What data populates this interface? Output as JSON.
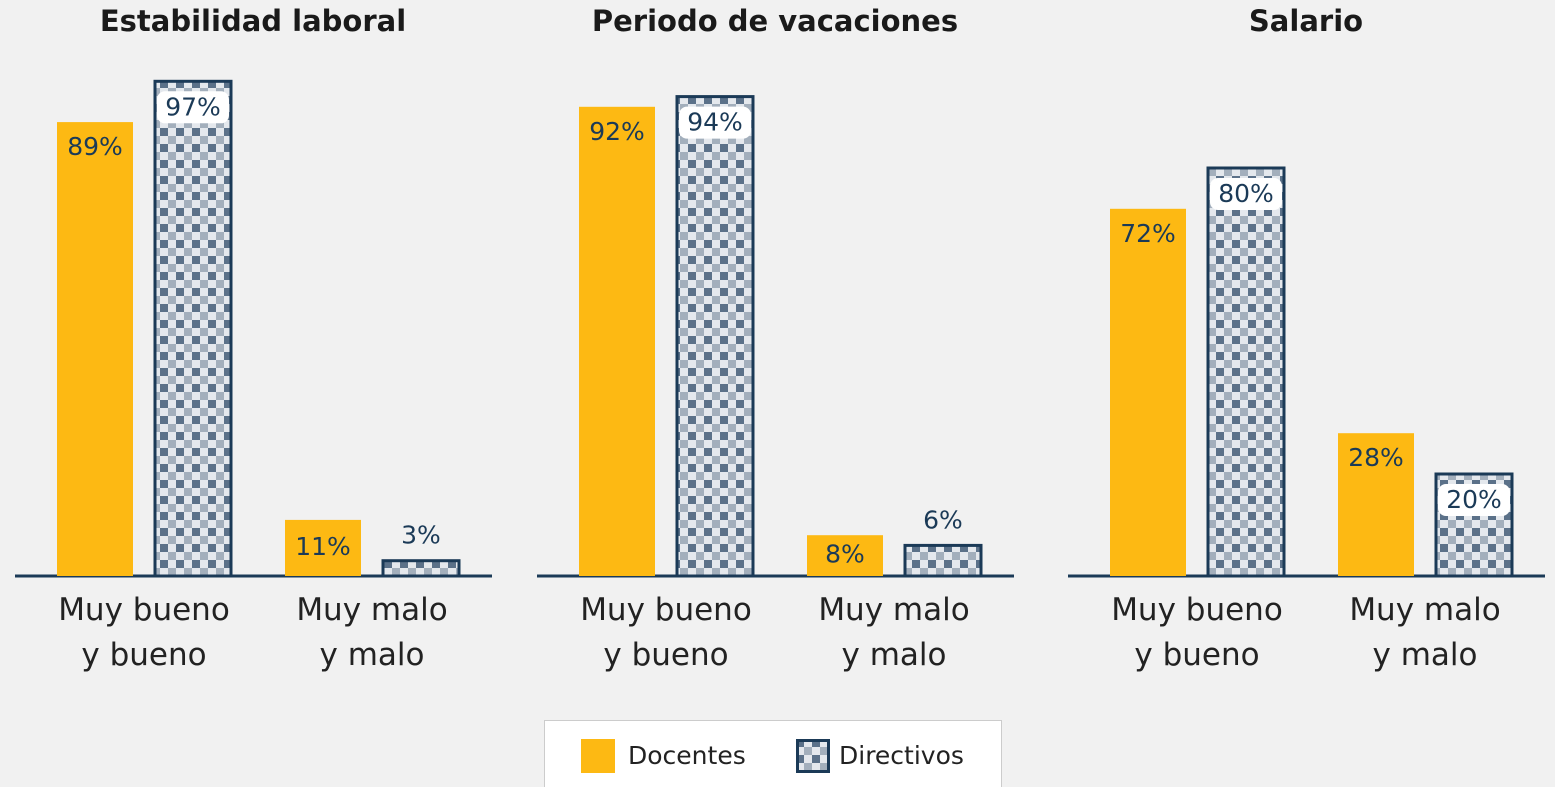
{
  "legend": [
    {
      "name": "Docentes",
      "color": "#FDB913"
    },
    {
      "name": "Directivos",
      "color": "#1B3A57"
    }
  ],
  "chart_data": [
    {
      "type": "bar",
      "title": "Estabilidad laboral",
      "categories": [
        "Muy bueno\ny bueno",
        "Muy malo\ny malo"
      ],
      "series": [
        {
          "values": [
            89,
            11
          ],
          "value_labels": [
            "89%",
            "11%"
          ]
        },
        {
          "values": [
            97,
            3
          ],
          "value_labels": [
            "97%",
            "3%"
          ]
        }
      ]
    },
    {
      "type": "bar",
      "title": "Periodo de vacaciones",
      "categories": [
        "Muy bueno\ny bueno",
        "Muy malo\ny malo"
      ],
      "series": [
        {
          "values": [
            92,
            8
          ],
          "value_labels": [
            "92%",
            "8%"
          ]
        },
        {
          "values": [
            94,
            6
          ],
          "value_labels": [
            "94%",
            "6%"
          ]
        }
      ]
    },
    {
      "type": "bar",
      "title": "Salario",
      "categories": [
        "Muy bueno\ny bueno",
        "Muy malo\ny malo"
      ],
      "series": [
        {
          "values": [
            72,
            28
          ],
          "value_labels": [
            "72%",
            "28%"
          ]
        },
        {
          "values": [
            80,
            20
          ],
          "value_labels": [
            "80%",
            "20%"
          ]
        }
      ]
    }
  ]
}
